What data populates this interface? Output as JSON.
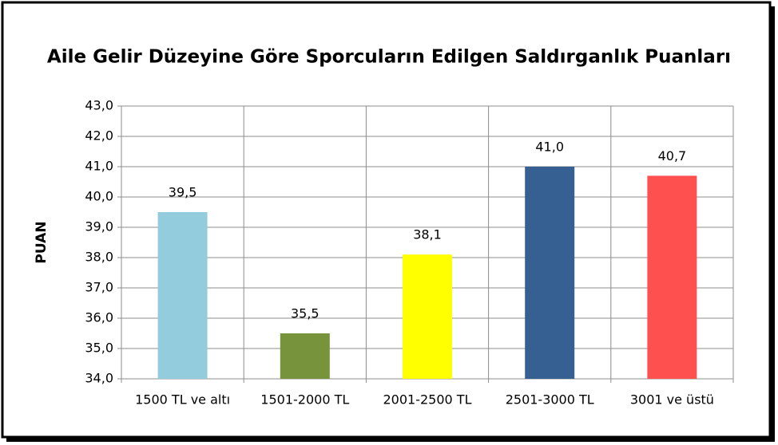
{
  "chart_data": {
    "type": "bar",
    "title": "Aile Gelir Düzeyine Göre Sporcuların Edilgen Saldırganlık Puanları",
    "y_label": "PUAN",
    "categories": [
      "1500 TL ve altı",
      "1501-2000 TL",
      "2001-2500 TL",
      "2501-3000 TL",
      "3001 ve üstü"
    ],
    "values": [
      39.5,
      35.5,
      38.1,
      41.0,
      40.7
    ],
    "value_labels": [
      "39,5",
      "35,5",
      "38,1",
      "41,0",
      "40,7"
    ],
    "colors": [
      "#93cddd",
      "#77933c",
      "#ffff00",
      "#376092",
      "#ff5050"
    ],
    "ylim": [
      34,
      43
    ],
    "yticks": [
      {
        "value": 34,
        "label": "34,0"
      },
      {
        "value": 35,
        "label": "35,0"
      },
      {
        "value": 36,
        "label": "36,0"
      },
      {
        "value": 37,
        "label": "37,0"
      },
      {
        "value": 38,
        "label": "38,0"
      },
      {
        "value": 39,
        "label": "39,0"
      },
      {
        "value": 40,
        "label": "40,0"
      },
      {
        "value": 41,
        "label": "41,0"
      },
      {
        "value": 42,
        "label": "42,0"
      },
      {
        "value": 43,
        "label": "43,0"
      }
    ],
    "grid": true
  }
}
